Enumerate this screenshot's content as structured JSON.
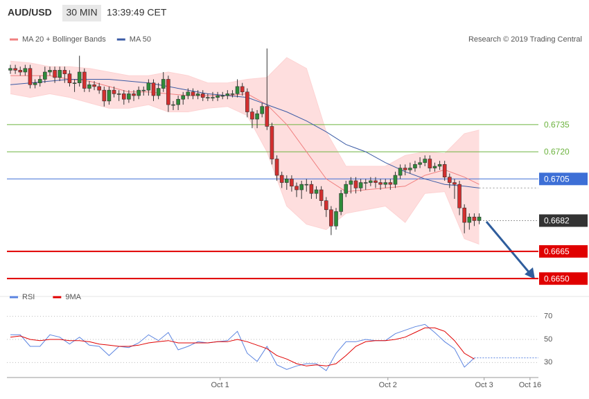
{
  "header": {
    "symbol": "AUD/USD",
    "timeframe": "30 MIN",
    "time": "13:39:49 CET",
    "copyright": "Research © 2019 Trading Central"
  },
  "chart_data": [
    {
      "type": "candlestick",
      "xlim": [
        -0.7,
        107
      ],
      "ylim": [
        0.6647,
        0.6777
      ],
      "up_color": "#2e8b3a",
      "down_color": "#d32f2f",
      "open": [
        0.6765,
        0.6766,
        0.6765,
        0.6764,
        0.6766,
        0.6757,
        0.6758,
        0.676,
        0.6764,
        0.6765,
        0.6761,
        0.6765,
        0.6763,
        0.6758,
        0.6758,
        0.6764,
        0.6755,
        0.6757,
        0.6756,
        0.6754,
        0.6748,
        0.6754,
        0.6752,
        0.6752,
        0.6749,
        0.6752,
        0.6751,
        0.6754,
        0.6754,
        0.6758,
        0.6751,
        0.6755,
        0.676,
        0.6746,
        0.6746,
        0.6749,
        0.6751,
        0.6753,
        0.6751,
        0.6752,
        0.675,
        0.675,
        0.675,
        0.6751,
        0.6751,
        0.6752,
        0.6752,
        0.6756,
        0.6753,
        0.6742,
        0.6738,
        0.6741,
        0.6745,
        0.6734,
        0.6716,
        0.6707,
        0.6703,
        0.6705,
        0.6701,
        0.6699,
        0.6702,
        0.6702,
        0.6697,
        0.6699,
        0.6693,
        0.6688,
        0.6679,
        0.6687,
        0.6697,
        0.6702,
        0.6704,
        0.67,
        0.6703,
        0.6703,
        0.6704,
        0.6703,
        0.6702,
        0.6703,
        0.6702,
        0.6707,
        0.6711,
        0.671,
        0.6711,
        0.6713,
        0.6714,
        0.6716,
        0.6711,
        0.6712,
        0.6713,
        0.6706,
        0.6703,
        0.6702,
        0.6689,
        0.6681,
        0.6684,
        0.6682
      ],
      "high": [
        0.6768,
        0.6768,
        0.6767,
        0.6768,
        0.6768,
        0.676,
        0.6762,
        0.6767,
        0.6767,
        0.6767,
        0.6767,
        0.6767,
        0.6765,
        0.676,
        0.6773,
        0.6766,
        0.6759,
        0.6759,
        0.6758,
        0.6756,
        0.6756,
        0.6756,
        0.6754,
        0.6754,
        0.6754,
        0.6754,
        0.6756,
        0.6756,
        0.676,
        0.676,
        0.6758,
        0.6764,
        0.6762,
        0.6748,
        0.6751,
        0.6753,
        0.6755,
        0.6755,
        0.6754,
        0.6754,
        0.6752,
        0.6753,
        0.6753,
        0.6753,
        0.6754,
        0.6754,
        0.676,
        0.6758,
        0.6755,
        0.6744,
        0.6743,
        0.6747,
        0.6777,
        0.6736,
        0.6718,
        0.6709,
        0.6707,
        0.6707,
        0.6703,
        0.6704,
        0.6705,
        0.6704,
        0.6701,
        0.6701,
        0.6695,
        0.669,
        0.6689,
        0.6699,
        0.6704,
        0.6706,
        0.6706,
        0.6705,
        0.6705,
        0.6706,
        0.6706,
        0.6705,
        0.6705,
        0.6705,
        0.6709,
        0.6713,
        0.6713,
        0.6714,
        0.6715,
        0.6717,
        0.6718,
        0.6718,
        0.6714,
        0.6715,
        0.6715,
        0.6708,
        0.6705,
        0.6704,
        0.6691,
        0.6686,
        0.6686,
        0.6686
      ],
      "low": [
        0.6763,
        0.6763,
        0.6762,
        0.6762,
        0.6755,
        0.6755,
        0.6756,
        0.6758,
        0.6762,
        0.6758,
        0.6759,
        0.6758,
        0.6756,
        0.6753,
        0.6756,
        0.6753,
        0.6753,
        0.6754,
        0.6752,
        0.6745,
        0.6746,
        0.675,
        0.6748,
        0.6746,
        0.6747,
        0.6748,
        0.6749,
        0.6751,
        0.6751,
        0.6748,
        0.6749,
        0.6753,
        0.6742,
        0.6743,
        0.6743,
        0.6746,
        0.6749,
        0.6749,
        0.6749,
        0.6748,
        0.6748,
        0.6748,
        0.6748,
        0.6749,
        0.6749,
        0.675,
        0.675,
        0.6751,
        0.6739,
        0.6733,
        0.6733,
        0.6739,
        0.6732,
        0.6713,
        0.6704,
        0.67,
        0.6699,
        0.6698,
        0.6695,
        0.6694,
        0.6698,
        0.6694,
        0.6694,
        0.669,
        0.6684,
        0.6674,
        0.6677,
        0.6685,
        0.6695,
        0.6697,
        0.6697,
        0.6698,
        0.6699,
        0.6701,
        0.67,
        0.6699,
        0.67,
        0.6699,
        0.67,
        0.6705,
        0.6707,
        0.6708,
        0.6709,
        0.6711,
        0.6712,
        0.6709,
        0.6709,
        0.671,
        0.6704,
        0.67,
        0.6694,
        0.6685,
        0.6675,
        0.6677,
        0.6679,
        0.668
      ],
      "close": [
        0.6766,
        0.6765,
        0.6764,
        0.6766,
        0.6757,
        0.6758,
        0.676,
        0.6764,
        0.6765,
        0.6761,
        0.6765,
        0.6763,
        0.6758,
        0.6758,
        0.6764,
        0.6755,
        0.6757,
        0.6756,
        0.6754,
        0.6748,
        0.6754,
        0.6752,
        0.6752,
        0.6749,
        0.6752,
        0.6751,
        0.6754,
        0.6754,
        0.6758,
        0.6751,
        0.6755,
        0.676,
        0.6746,
        0.6746,
        0.6749,
        0.6751,
        0.6753,
        0.6751,
        0.6752,
        0.675,
        0.675,
        0.675,
        0.6751,
        0.6751,
        0.6752,
        0.6752,
        0.6756,
        0.6753,
        0.6742,
        0.6738,
        0.6741,
        0.6745,
        0.6734,
        0.6716,
        0.6707,
        0.6703,
        0.6705,
        0.6701,
        0.6699,
        0.6702,
        0.6702,
        0.6697,
        0.6699,
        0.6693,
        0.6688,
        0.6679,
        0.6687,
        0.6697,
        0.6702,
        0.6704,
        0.67,
        0.6703,
        0.6703,
        0.6704,
        0.6703,
        0.6702,
        0.6703,
        0.6702,
        0.6707,
        0.6711,
        0.671,
        0.6711,
        0.6713,
        0.6714,
        0.6716,
        0.6711,
        0.6712,
        0.6713,
        0.6706,
        0.6703,
        0.6702,
        0.6689,
        0.6681,
        0.6684,
        0.6682,
        0.6684
      ],
      "series": [
        {
          "name": "MA 20 + Bollinger Bands",
          "color": "#f08080",
          "band_color": "#fdd3d3",
          "x": [
            0,
            4,
            8,
            12,
            16,
            20,
            24,
            28,
            32,
            36,
            40,
            44,
            48,
            52,
            56,
            60,
            64,
            68,
            72,
            76,
            80,
            84,
            88,
            92,
            95
          ],
          "values": [
            0.6762,
            0.6762,
            0.6762,
            0.676,
            0.6759,
            0.6756,
            0.6753,
            0.6753,
            0.6752,
            0.6751,
            0.6751,
            0.6751,
            0.6752,
            0.6746,
            0.6735,
            0.672,
            0.6705,
            0.6698,
            0.6699,
            0.67,
            0.6701,
            0.6707,
            0.671,
            0.6706,
            0.6702
          ],
          "upper": [
            0.677,
            0.6769,
            0.6767,
            0.6767,
            0.6766,
            0.6764,
            0.6762,
            0.6762,
            0.6764,
            0.6762,
            0.6758,
            0.6758,
            0.676,
            0.6761,
            0.6772,
            0.6766,
            0.6731,
            0.6712,
            0.6712,
            0.6712,
            0.6718,
            0.672,
            0.6719,
            0.673,
            0.6732
          ],
          "lower": [
            0.6752,
            0.675,
            0.6752,
            0.675,
            0.6747,
            0.6744,
            0.6744,
            0.6746,
            0.6742,
            0.6742,
            0.6744,
            0.6745,
            0.674,
            0.672,
            0.669,
            0.668,
            0.6677,
            0.6686,
            0.6688,
            0.669,
            0.6681,
            0.6697,
            0.6698,
            0.6672,
            0.6669
          ]
        },
        {
          "name": "MA 50",
          "color": "#3b5ba5",
          "x": [
            0,
            4,
            8,
            12,
            16,
            20,
            24,
            28,
            32,
            36,
            40,
            44,
            48,
            52,
            56,
            60,
            64,
            68,
            72,
            76,
            80,
            84,
            88,
            92,
            95
          ],
          "values": [
            0.6757,
            0.6758,
            0.6759,
            0.676,
            0.676,
            0.676,
            0.6759,
            0.6758,
            0.6756,
            0.6754,
            0.6752,
            0.6751,
            0.675,
            0.6746,
            0.6742,
            0.6737,
            0.6731,
            0.6724,
            0.672,
            0.6714,
            0.6709,
            0.6705,
            0.6702,
            0.6701,
            0.67
          ]
        }
      ],
      "yticks": [
        0.6735,
        {
          "value": 0.672,
          "label": "0.6720"
        },
        0.6705,
        0.6682,
        0.6665,
        {
          "value": 0.665,
          "label": "0.6650"
        }
      ],
      "ytick_colors": [
        "#6cb33f",
        "#6cb33f",
        "#3d6fd6",
        "#333333",
        "#e00000",
        "#e00000"
      ],
      "ytick_line_styles": [
        "solid",
        "solid",
        "solid",
        "dotted",
        "thick",
        "thick"
      ],
      "ytick_label_boxes": [
        false,
        false,
        true,
        true,
        true,
        true
      ]
    },
    {
      "type": "line",
      "xlim": [
        -0.7,
        107
      ],
      "ylim": [
        17,
        77
      ],
      "yticks": [
        30,
        50,
        70
      ],
      "xticks": [
        {
          "value": 42.5,
          "label": "Oct 1"
        },
        {
          "value": 76.5,
          "label": "Oct 2"
        },
        {
          "value": 96,
          "label": "Oct 3"
        },
        {
          "value": 105.3,
          "label": "Oct 16"
        }
      ],
      "grid": true,
      "series": [
        {
          "name": "RSI",
          "color": "#5b84e0",
          "x": [
            0,
            2,
            4,
            6,
            8,
            10,
            12,
            14,
            16,
            18,
            20,
            22,
            24,
            26,
            28,
            30,
            32,
            34,
            36,
            38,
            40,
            42,
            44,
            46,
            48,
            50,
            52,
            54,
            56,
            58,
            60,
            62,
            64,
            66,
            68,
            70,
            72,
            74,
            76,
            78,
            80,
            82,
            84,
            86,
            88,
            90,
            92,
            94
          ],
          "values": [
            54,
            54,
            44,
            44,
            54,
            52,
            46,
            52,
            45,
            44,
            36,
            44,
            43,
            47,
            54,
            49,
            56,
            41,
            44,
            48,
            47,
            48,
            49,
            57,
            38,
            31,
            44,
            28,
            24,
            27,
            29,
            29,
            23,
            38,
            48,
            48,
            50,
            49,
            49,
            55,
            58,
            61,
            63,
            56,
            48,
            42,
            26,
            34
          ]
        },
        {
          "name": "9MA",
          "color": "#e00000",
          "x": [
            0,
            2,
            4,
            6,
            8,
            10,
            12,
            14,
            16,
            18,
            20,
            22,
            24,
            26,
            28,
            30,
            32,
            34,
            36,
            38,
            40,
            42,
            44,
            46,
            48,
            50,
            52,
            54,
            56,
            58,
            60,
            62,
            64,
            66,
            68,
            70,
            72,
            74,
            76,
            78,
            80,
            82,
            84,
            86,
            88,
            90,
            92,
            94
          ],
          "values": [
            52,
            53,
            50,
            49,
            50,
            50,
            49,
            49,
            48,
            46,
            45,
            44,
            44,
            45,
            47,
            48,
            49,
            47,
            47,
            47,
            47,
            48,
            48,
            50,
            48,
            45,
            42,
            36,
            33,
            29,
            27,
            28,
            27,
            29,
            36,
            44,
            48,
            49,
            49,
            50,
            52,
            56,
            60,
            60,
            57,
            49,
            38,
            33
          ]
        }
      ]
    }
  ]
}
